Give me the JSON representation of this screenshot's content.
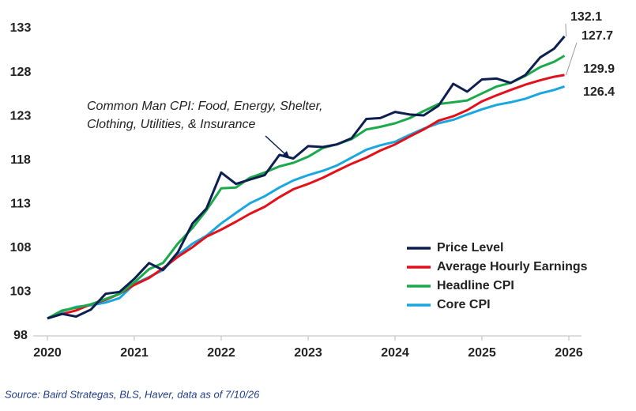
{
  "chart_data": {
    "type": "line",
    "x": [
      2020,
      2020.17,
      2020.33,
      2020.5,
      2020.67,
      2020.83,
      2021,
      2021.17,
      2021.33,
      2021.5,
      2021.67,
      2021.83,
      2022,
      2022.17,
      2022.33,
      2022.5,
      2022.67,
      2022.83,
      2023,
      2023.17,
      2023.33,
      2023.5,
      2023.67,
      2023.83,
      2024,
      2024.17,
      2024.33,
      2024.5,
      2024.67,
      2024.83,
      2025,
      2025.17,
      2025.33,
      2025.5,
      2025.67,
      2025.83,
      2025.95
    ],
    "series": [
      {
        "name": "Price Level",
        "color": "#0d1f4f",
        "values": [
          100,
          100.5,
          100.2,
          101,
          102.8,
          103,
          104.5,
          106.3,
          105.5,
          107.5,
          110.8,
          112.5,
          116.6,
          115.3,
          115.8,
          116.3,
          118.6,
          118.2,
          119.6,
          119.5,
          119.8,
          120.5,
          122.7,
          122.8,
          123.5,
          123.2,
          123.1,
          124.2,
          126.7,
          125.8,
          127.2,
          127.3,
          126.8,
          127.7,
          129.7,
          130.7,
          132.1
        ]
      },
      {
        "name": "Average Hourly Earnings",
        "color": "#e3101a",
        "values": [
          100,
          100.5,
          100.9,
          101.6,
          102.1,
          102.8,
          103.8,
          104.6,
          105.7,
          107.0,
          108.1,
          109.3,
          110.1,
          111.0,
          111.9,
          112.7,
          113.8,
          114.7,
          115.3,
          116.0,
          116.8,
          117.6,
          118.3,
          119.1,
          119.8,
          120.7,
          121.5,
          122.5,
          123.0,
          123.7,
          124.7,
          125.4,
          126.0,
          126.6,
          127.1,
          127.5,
          127.7
        ]
      },
      {
        "name": "Headline CPI",
        "color": "#1aaa4b",
        "values": [
          100,
          100.9,
          101.2,
          101.6,
          102.2,
          102.8,
          104.1,
          105.6,
          106.3,
          108.5,
          110.3,
          112.3,
          114.8,
          114.9,
          116.0,
          116.6,
          117.3,
          117.7,
          118.4,
          119.4,
          119.8,
          120.4,
          121.5,
          121.8,
          122.2,
          122.8,
          123.6,
          124.4,
          124.6,
          124.8,
          125.6,
          126.4,
          126.8,
          127.6,
          128.6,
          129.2,
          129.9
        ]
      },
      {
        "name": "Core CPI",
        "color": "#1aa7e0",
        "values": [
          100,
          100.8,
          101.3,
          101.5,
          101.8,
          102.3,
          103.9,
          104.7,
          105.5,
          107.2,
          108.5,
          109.4,
          110.8,
          112.0,
          113.1,
          113.9,
          114.9,
          115.7,
          116.3,
          116.8,
          117.4,
          118.3,
          119.2,
          119.7,
          120.1,
          120.9,
          121.6,
          122.2,
          122.6,
          123.2,
          123.8,
          124.3,
          124.6,
          125.0,
          125.6,
          126.0,
          126.4
        ]
      }
    ],
    "xlim": [
      2020,
      2026
    ],
    "xticks": [
      2020,
      2021,
      2022,
      2023,
      2024,
      2025,
      2026
    ],
    "ylim": [
      98,
      133
    ],
    "yticks": [
      98,
      103,
      108,
      113,
      118,
      123,
      128,
      133
    ],
    "grid": false,
    "legend": "lower right",
    "annotation": [
      "Common Man CPI: Food, Energy, Shelter,",
      "Clothing, Utilities, & Insurance"
    ],
    "source": "Source:  Baird Strategas, BLS, Haver, data as of 7/10/26"
  }
}
